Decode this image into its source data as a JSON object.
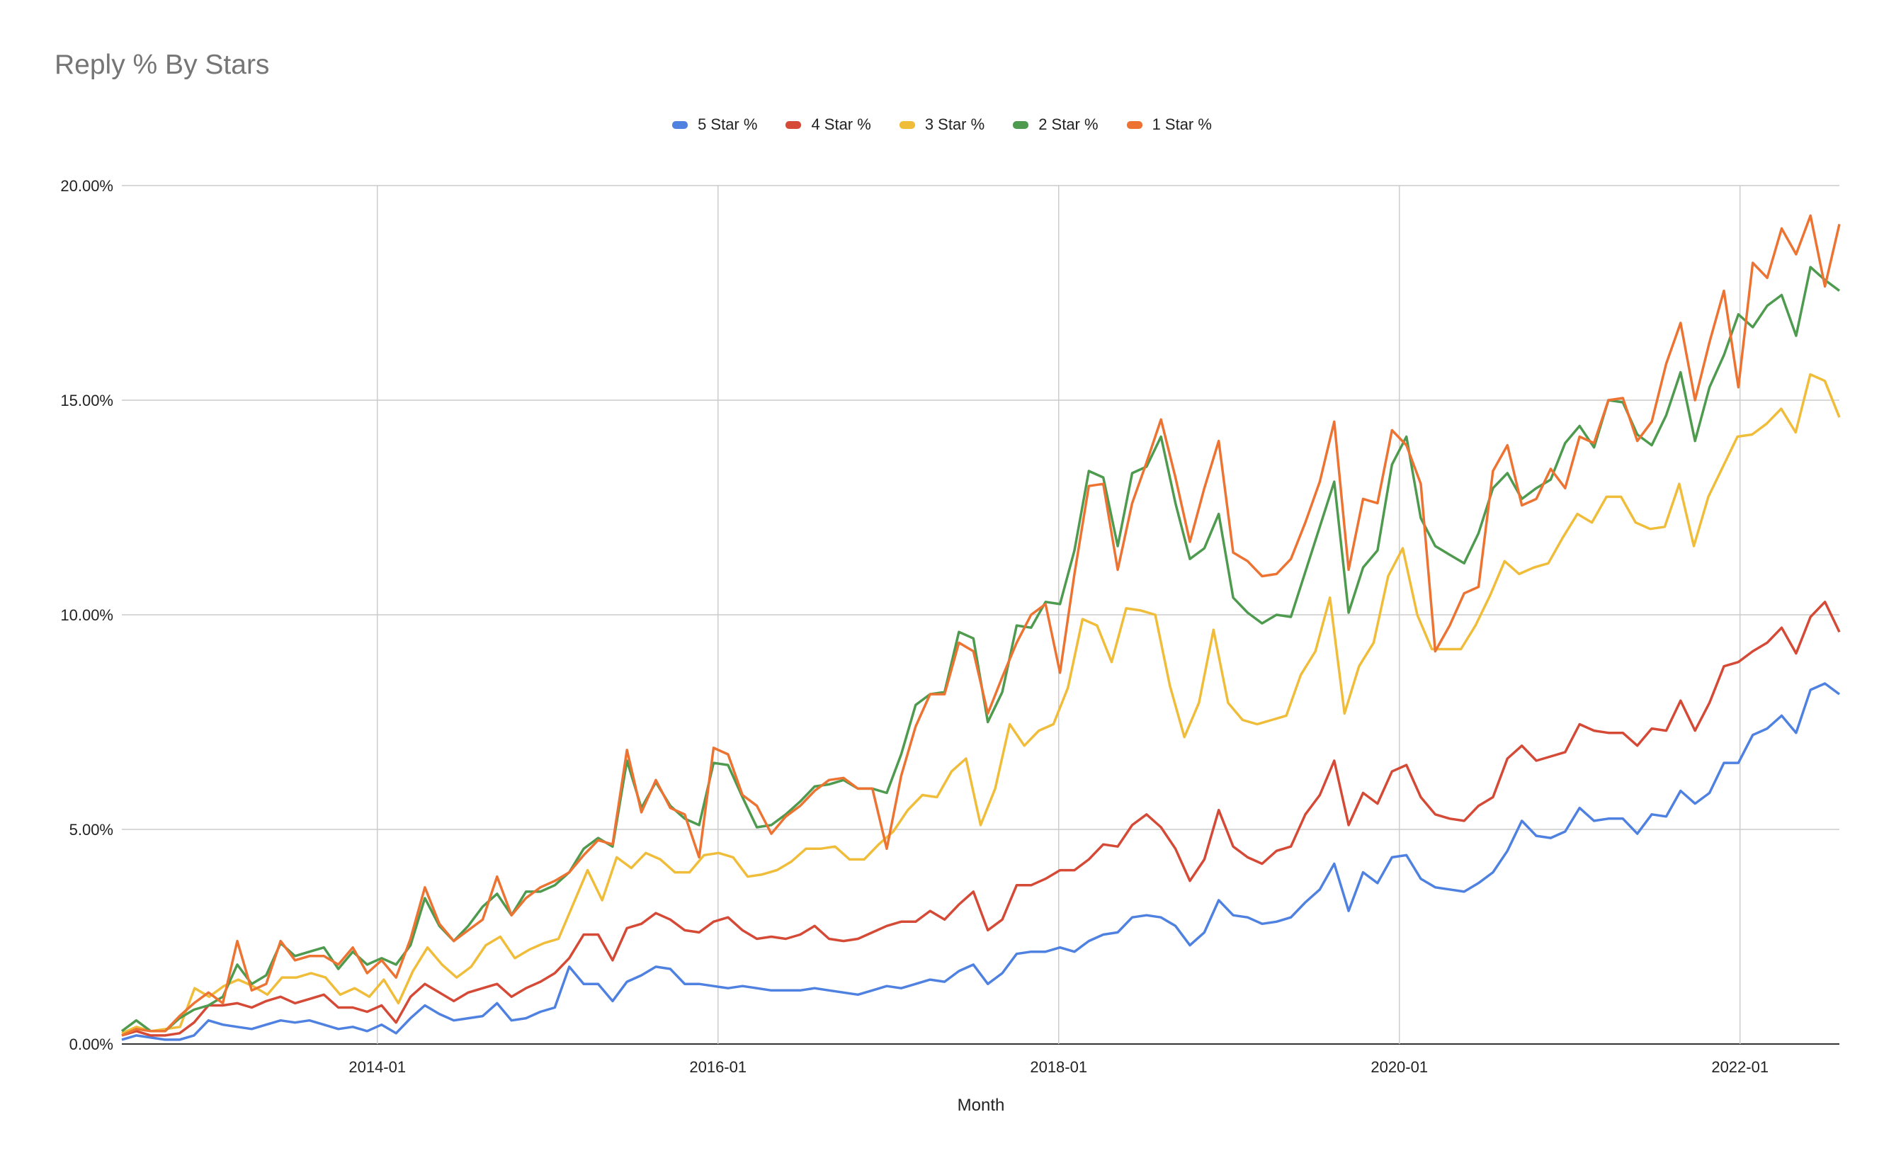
{
  "chart_data": {
    "type": "line",
    "title": "Reply % By Stars",
    "xlabel": "Month",
    "ylabel": "",
    "x_start": "2012-07",
    "x_end": "2022-08",
    "x_ticks": [
      "2014-01",
      "2016-01",
      "2018-01",
      "2020-01",
      "2022-01"
    ],
    "y_ticks": [
      "0.00%",
      "5.00%",
      "10.00%",
      "15.00%",
      "20.00%"
    ],
    "ylim": [
      0,
      20
    ],
    "grid": true,
    "legend_position": "top",
    "series": [
      {
        "name": "5 Star %",
        "color": "#4f81e0",
        "values": [
          0.1,
          0.2,
          0.15,
          0.1,
          0.1,
          0.2,
          0.55,
          0.45,
          0.4,
          0.35,
          0.45,
          0.55,
          0.5,
          0.55,
          0.45,
          0.35,
          0.4,
          0.3,
          0.45,
          0.25,
          0.6,
          0.9,
          0.7,
          0.55,
          0.6,
          0.65,
          0.95,
          0.55,
          0.6,
          0.75,
          0.85,
          1.8,
          1.4,
          1.4,
          1.0,
          1.45,
          1.6,
          1.8,
          1.75,
          1.4,
          1.4,
          1.35,
          1.3,
          1.35,
          1.3,
          1.25,
          1.25,
          1.25,
          1.3,
          1.25,
          1.2,
          1.15,
          1.25,
          1.35,
          1.3,
          1.4,
          1.5,
          1.45,
          1.7,
          1.85,
          1.4,
          1.65,
          2.1,
          2.15,
          2.15,
          2.25,
          2.15,
          2.4,
          2.55,
          2.6,
          2.95,
          3.0,
          2.95,
          2.75,
          2.3,
          2.6,
          3.35,
          3.0,
          2.95,
          2.8,
          2.85,
          2.95,
          3.3,
          3.6,
          4.2,
          3.1,
          4.0,
          3.75,
          4.35,
          4.4,
          3.85,
          3.65,
          3.6,
          3.55,
          3.75,
          4.0,
          4.5,
          5.2,
          4.85,
          4.8,
          4.95,
          5.5,
          5.2,
          5.25,
          5.25,
          4.9,
          5.35,
          5.3,
          5.9,
          5.6,
          5.85,
          6.55,
          6.55,
          7.2,
          7.35,
          7.65,
          7.25,
          8.25,
          8.4,
          8.15
        ]
      },
      {
        "name": "4 Star %",
        "color": "#d44a36",
        "values": [
          0.2,
          0.3,
          0.2,
          0.2,
          0.25,
          0.5,
          0.9,
          0.9,
          0.95,
          0.85,
          1.0,
          1.1,
          0.95,
          1.05,
          1.15,
          0.85,
          0.85,
          0.75,
          0.9,
          0.5,
          1.1,
          1.4,
          1.2,
          1.0,
          1.2,
          1.3,
          1.4,
          1.1,
          1.3,
          1.45,
          1.65,
          2.0,
          2.55,
          2.55,
          1.95,
          2.7,
          2.8,
          3.05,
          2.9,
          2.65,
          2.6,
          2.85,
          2.95,
          2.65,
          2.45,
          2.5,
          2.45,
          2.55,
          2.75,
          2.45,
          2.4,
          2.45,
          2.6,
          2.75,
          2.85,
          2.85,
          3.1,
          2.9,
          3.25,
          3.55,
          2.65,
          2.9,
          3.7,
          3.7,
          3.85,
          4.05,
          4.05,
          4.3,
          4.65,
          4.6,
          5.1,
          5.35,
          5.05,
          4.55,
          3.8,
          4.3,
          5.45,
          4.6,
          4.35,
          4.2,
          4.5,
          4.6,
          5.35,
          5.8,
          6.6,
          5.1,
          5.85,
          5.6,
          6.35,
          6.5,
          5.75,
          5.35,
          5.25,
          5.2,
          5.55,
          5.75,
          6.65,
          6.95,
          6.6,
          6.7,
          6.8,
          7.45,
          7.3,
          7.25,
          7.25,
          6.95,
          7.35,
          7.3,
          8.0,
          7.3,
          7.95,
          8.8,
          8.9,
          9.15,
          9.35,
          9.7,
          9.1,
          9.95,
          10.3,
          9.6
        ]
      },
      {
        "name": "3 Star %",
        "color": "#f0bd3a",
        "values": [
          0.25,
          0.4,
          0.3,
          0.35,
          0.4,
          1.3,
          1.1,
          1.35,
          1.5,
          1.35,
          1.15,
          1.55,
          1.55,
          1.65,
          1.55,
          1.15,
          1.3,
          1.1,
          1.5,
          0.95,
          1.7,
          2.25,
          1.85,
          1.55,
          1.8,
          2.3,
          2.5,
          2.0,
          2.2,
          2.35,
          2.45,
          3.25,
          4.05,
          3.35,
          4.35,
          4.1,
          4.45,
          4.3,
          4.0,
          4.0,
          4.4,
          4.45,
          4.35,
          3.9,
          3.95,
          4.05,
          4.25,
          4.55,
          4.55,
          4.6,
          4.3,
          4.3,
          4.65,
          4.95,
          5.45,
          5.8,
          5.75,
          6.35,
          6.65,
          5.1,
          5.95,
          7.45,
          6.95,
          7.3,
          7.45,
          8.3,
          9.9,
          9.75,
          8.9,
          10.15,
          10.1,
          10.0,
          8.35,
          7.15,
          7.95,
          9.65,
          7.95,
          7.55,
          7.45,
          7.55,
          7.65,
          8.6,
          9.15,
          10.4,
          7.7,
          8.8,
          9.35,
          10.9,
          11.55,
          10.0,
          9.2,
          9.2,
          9.2,
          9.75,
          10.45,
          11.25,
          10.95,
          11.1,
          11.2,
          11.8,
          12.35,
          12.15,
          12.75,
          12.75,
          12.15,
          12.0,
          12.05,
          13.05,
          11.6,
          12.75,
          13.45,
          14.15,
          14.2,
          14.45,
          14.8,
          14.25,
          15.6,
          15.45,
          14.6
        ]
      },
      {
        "name": "2 Star %",
        "color": "#4e9a4e",
        "values": [
          0.3,
          0.55,
          0.3,
          0.3,
          0.6,
          0.8,
          0.9,
          1.1,
          1.85,
          1.4,
          1.6,
          2.35,
          2.05,
          2.15,
          2.25,
          1.75,
          2.15,
          1.85,
          2.0,
          1.85,
          2.3,
          3.4,
          2.75,
          2.4,
          2.75,
          3.2,
          3.5,
          3.0,
          3.55,
          3.55,
          3.7,
          4.0,
          4.55,
          4.8,
          4.6,
          6.6,
          5.5,
          6.1,
          5.55,
          5.25,
          5.1,
          6.55,
          6.5,
          5.75,
          5.05,
          5.1,
          5.35,
          5.65,
          6.0,
          6.05,
          6.15,
          5.95,
          5.95,
          5.85,
          6.75,
          7.9,
          8.15,
          8.2,
          9.6,
          9.45,
          7.5,
          8.2,
          9.75,
          9.7,
          10.3,
          10.25,
          11.5,
          13.35,
          13.2,
          11.6,
          13.3,
          13.45,
          14.15,
          12.6,
          11.3,
          11.55,
          12.35,
          10.4,
          10.05,
          9.8,
          10.0,
          9.95,
          11.0,
          12.05,
          13.1,
          10.05,
          11.1,
          11.5,
          13.5,
          14.15,
          12.25,
          11.6,
          11.4,
          11.2,
          11.9,
          12.95,
          13.3,
          12.7,
          12.95,
          13.15,
          14.0,
          14.4,
          13.9,
          15.0,
          14.95,
          14.2,
          13.95,
          14.65,
          15.65,
          14.05,
          15.3,
          16.05,
          17.0,
          16.7,
          17.2,
          17.45,
          16.5,
          18.1,
          17.8,
          17.55
        ]
      },
      {
        "name": "1 Star %",
        "color": "#ec7332",
        "values": [
          0.2,
          0.35,
          0.3,
          0.3,
          0.65,
          0.95,
          1.2,
          0.95,
          2.4,
          1.25,
          1.4,
          2.4,
          1.95,
          2.05,
          2.05,
          1.85,
          2.25,
          1.65,
          1.95,
          1.55,
          2.45,
          3.65,
          2.8,
          2.4,
          2.65,
          2.9,
          3.9,
          3.0,
          3.4,
          3.65,
          3.8,
          4.0,
          4.4,
          4.75,
          4.65,
          6.85,
          5.4,
          6.15,
          5.5,
          5.35,
          4.35,
          6.9,
          6.75,
          5.8,
          5.55,
          4.9,
          5.3,
          5.55,
          5.9,
          6.15,
          6.2,
          5.95,
          5.95,
          4.55,
          6.25,
          7.4,
          8.15,
          8.15,
          9.35,
          9.15,
          7.7,
          8.55,
          9.35,
          10.0,
          10.25,
          8.65,
          10.95,
          13.0,
          13.05,
          11.05,
          12.6,
          13.55,
          14.55,
          13.2,
          11.7,
          12.95,
          14.05,
          11.45,
          11.25,
          10.9,
          10.95,
          11.3,
          12.15,
          13.1,
          14.5,
          11.05,
          12.7,
          12.6,
          14.3,
          13.95,
          13.05,
          9.15,
          9.75,
          10.5,
          10.65,
          13.35,
          13.95,
          12.55,
          12.7,
          13.4,
          12.95,
          14.15,
          14.0,
          15.0,
          15.05,
          14.05,
          14.5,
          15.85,
          16.8,
          15.0,
          16.35,
          17.55,
          15.3,
          18.2,
          17.85,
          19.0,
          18.4,
          19.3,
          17.65,
          19.1
        ]
      }
    ]
  }
}
